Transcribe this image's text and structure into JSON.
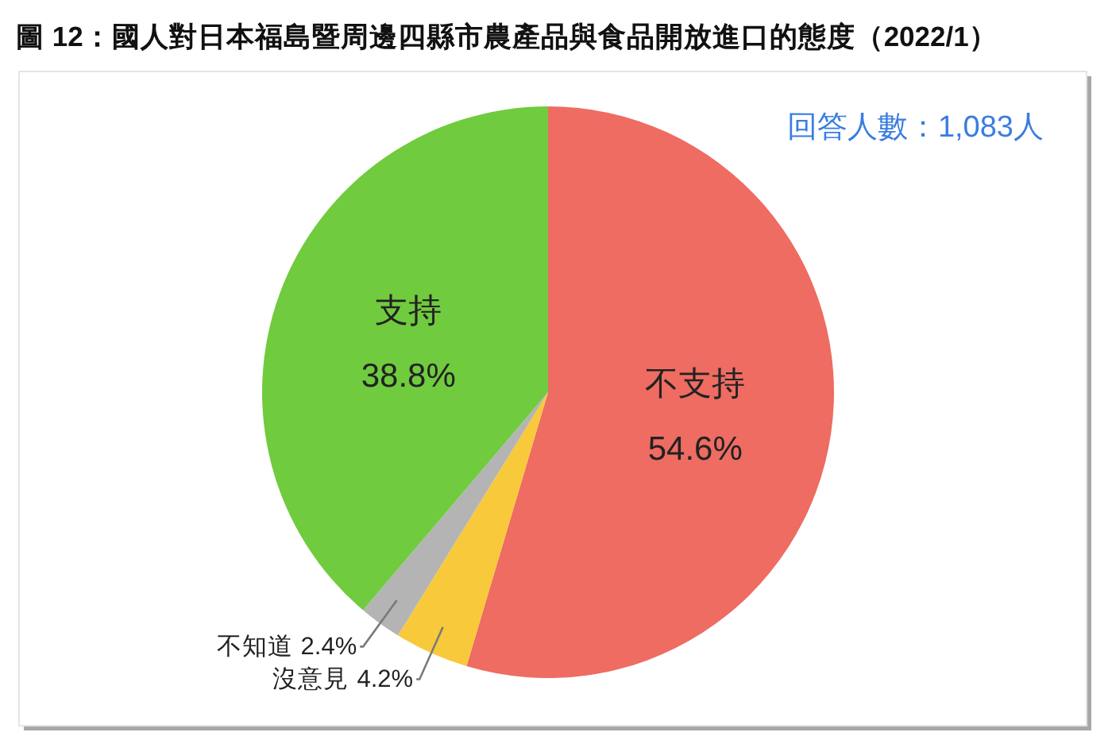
{
  "chart_data": {
    "type": "pie",
    "title": "圖 12：國人對日本福島暨周邊四縣市農產品與食品開放進口的態度（2022/1）",
    "annotations": [
      "回答人數：1,083人"
    ],
    "categories": [
      "不支持",
      "沒意見",
      "不知道",
      "支持"
    ],
    "values": [
      54.6,
      4.2,
      2.4,
      38.8
    ],
    "value_labels": [
      "54.6%",
      "4.2%",
      "2.4%",
      "38.8%"
    ],
    "colors": [
      "#ee6c62",
      "#f8c93a",
      "#b4b4b4",
      "#70cb3e"
    ]
  }
}
